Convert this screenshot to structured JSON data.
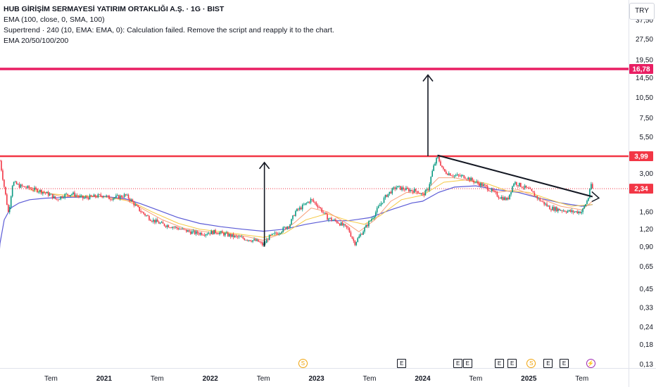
{
  "legend": {
    "title": "HUB GİRİŞİM SERMAYESİ YATIRIM ORTAKLIĞI A.Ş. · 1G · BIST",
    "line1": "EMA (100, close, 0, SMA, 100)",
    "line2": "Supertrend · 240 (10, EMA: EMA, 0): Calculation failed. Remove the script and reapply it to the chart.",
    "line3": "EMA 20/50/100/200"
  },
  "currency": "TRY",
  "chart_data": {
    "type": "line",
    "yscale": "log",
    "ylim": [
      0.125,
      48
    ],
    "y_ticks": [
      "37,50",
      "27,50",
      "19,50",
      "14,50",
      "10,50",
      "7,50",
      "5,50",
      "3,00",
      "1,60",
      "1,20",
      "0,90",
      "0,65",
      "0,45",
      "0,33",
      "0,24",
      "0,18",
      "0,13"
    ],
    "y_tick_values": [
      37.5,
      27.5,
      19.5,
      14.5,
      10.5,
      7.5,
      5.5,
      3.0,
      1.6,
      1.2,
      0.9,
      0.65,
      0.45,
      0.33,
      0.24,
      0.18,
      0.13
    ],
    "x_ticks": [
      {
        "label": "Tem",
        "t": 2020.5,
        "year": false
      },
      {
        "label": "2021",
        "t": 2021.0,
        "year": true
      },
      {
        "label": "Tem",
        "t": 2021.5,
        "year": false
      },
      {
        "label": "2022",
        "t": 2022.0,
        "year": true
      },
      {
        "label": "Tem",
        "t": 2022.5,
        "year": false
      },
      {
        "label": "2023",
        "t": 2023.0,
        "year": true
      },
      {
        "label": "Tem",
        "t": 2023.5,
        "year": false
      },
      {
        "label": "2024",
        "t": 2024.0,
        "year": true
      },
      {
        "label": "Tem",
        "t": 2024.5,
        "year": false
      },
      {
        "label": "2025",
        "t": 2025.0,
        "year": true
      },
      {
        "label": "Tem",
        "t": 2025.5,
        "year": false
      }
    ],
    "xlim": [
      2020.02,
      2025.8
    ],
    "price": [
      [
        2020.02,
        3.7
      ],
      [
        2020.06,
        2.4
      ],
      [
        2020.1,
        1.55
      ],
      [
        2020.14,
        2.6
      ],
      [
        2020.2,
        2.45
      ],
      [
        2020.3,
        2.35
      ],
      [
        2020.4,
        2.25
      ],
      [
        2020.5,
        2.1
      ],
      [
        2020.55,
        1.95
      ],
      [
        2020.62,
        2.1
      ],
      [
        2020.7,
        2.15
      ],
      [
        2020.8,
        2.0
      ],
      [
        2020.9,
        2.05
      ],
      [
        2021.0,
        2.1
      ],
      [
        2021.05,
        2.0
      ],
      [
        2021.15,
        2.05
      ],
      [
        2021.2,
        2.1
      ],
      [
        2021.25,
        1.95
      ],
      [
        2021.3,
        1.75
      ],
      [
        2021.35,
        1.6
      ],
      [
        2021.45,
        1.4
      ],
      [
        2021.55,
        1.3
      ],
      [
        2021.65,
        1.25
      ],
      [
        2021.75,
        1.18
      ],
      [
        2021.85,
        1.13
      ],
      [
        2021.95,
        1.12
      ],
      [
        2022.05,
        1.15
      ],
      [
        2022.15,
        1.1
      ],
      [
        2022.25,
        1.05
      ],
      [
        2022.35,
        1.02
      ],
      [
        2022.45,
        0.98
      ],
      [
        2022.5,
        0.92
      ],
      [
        2022.55,
        1.05
      ],
      [
        2022.65,
        1.15
      ],
      [
        2022.75,
        1.3
      ],
      [
        2022.8,
        1.6
      ],
      [
        2022.85,
        1.7
      ],
      [
        2022.95,
        1.95
      ],
      [
        2023.02,
        1.75
      ],
      [
        2023.1,
        1.45
      ],
      [
        2023.2,
        1.35
      ],
      [
        2023.3,
        1.2
      ],
      [
        2023.36,
        0.95
      ],
      [
        2023.45,
        1.2
      ],
      [
        2023.55,
        1.55
      ],
      [
        2023.6,
        1.8
      ],
      [
        2023.66,
        2.1
      ],
      [
        2023.75,
        2.4
      ],
      [
        2023.85,
        2.3
      ],
      [
        2023.95,
        2.25
      ],
      [
        2024.0,
        2.1
      ],
      [
        2024.05,
        2.3
      ],
      [
        2024.1,
        3.3
      ],
      [
        2024.14,
        3.95
      ],
      [
        2024.2,
        3.1
      ],
      [
        2024.3,
        2.9
      ],
      [
        2024.4,
        2.85
      ],
      [
        2024.5,
        2.6
      ],
      [
        2024.58,
        2.45
      ],
      [
        2024.65,
        2.25
      ],
      [
        2024.72,
        2.05
      ],
      [
        2024.8,
        1.95
      ],
      [
        2024.86,
        2.6
      ],
      [
        2024.93,
        2.45
      ],
      [
        2025.0,
        2.3
      ],
      [
        2025.1,
        1.95
      ],
      [
        2025.2,
        1.7
      ],
      [
        2025.3,
        1.65
      ],
      [
        2025.4,
        1.6
      ],
      [
        2025.5,
        1.6
      ],
      [
        2025.56,
        2.0
      ],
      [
        2025.58,
        2.5
      ],
      [
        2025.6,
        2.34
      ]
    ],
    "ema_long": [
      [
        2020.0,
        0.6
      ],
      [
        2020.02,
        0.95
      ],
      [
        2020.06,
        1.4
      ],
      [
        2020.12,
        1.7
      ],
      [
        2020.2,
        1.85
      ],
      [
        2020.3,
        1.95
      ],
      [
        2020.45,
        2.0
      ],
      [
        2020.6,
        2.02
      ],
      [
        2020.8,
        2.04
      ],
      [
        2021.0,
        2.06
      ],
      [
        2021.2,
        1.98
      ],
      [
        2021.35,
        1.82
      ],
      [
        2021.5,
        1.65
      ],
      [
        2021.7,
        1.45
      ],
      [
        2021.9,
        1.32
      ],
      [
        2022.1,
        1.25
      ],
      [
        2022.3,
        1.2
      ],
      [
        2022.5,
        1.16
      ],
      [
        2022.7,
        1.2
      ],
      [
        2022.9,
        1.3
      ],
      [
        2023.1,
        1.38
      ],
      [
        2023.3,
        1.38
      ],
      [
        2023.5,
        1.45
      ],
      [
        2023.7,
        1.65
      ],
      [
        2023.9,
        1.85
      ],
      [
        2024.0,
        1.9
      ],
      [
        2024.15,
        2.2
      ],
      [
        2024.3,
        2.4
      ],
      [
        2024.5,
        2.45
      ],
      [
        2024.7,
        2.3
      ],
      [
        2024.9,
        2.2
      ],
      [
        2025.1,
        2.0
      ],
      [
        2025.3,
        1.85
      ],
      [
        2025.5,
        1.75
      ],
      [
        2025.6,
        1.8
      ]
    ],
    "ema_short": [
      [
        2020.3,
        2.4
      ],
      [
        2020.45,
        2.2
      ],
      [
        2020.6,
        2.05
      ],
      [
        2020.8,
        2.05
      ],
      [
        2021.0,
        2.05
      ],
      [
        2021.2,
        1.95
      ],
      [
        2021.35,
        1.7
      ],
      [
        2021.55,
        1.4
      ],
      [
        2021.75,
        1.22
      ],
      [
        2021.95,
        1.15
      ],
      [
        2022.15,
        1.12
      ],
      [
        2022.35,
        1.06
      ],
      [
        2022.5,
        1.0
      ],
      [
        2022.65,
        1.1
      ],
      [
        2022.8,
        1.35
      ],
      [
        2022.95,
        1.7
      ],
      [
        2023.1,
        1.6
      ],
      [
        2023.3,
        1.3
      ],
      [
        2023.4,
        1.15
      ],
      [
        2023.55,
        1.4
      ],
      [
        2023.7,
        1.9
      ],
      [
        2023.85,
        2.2
      ],
      [
        2024.0,
        2.15
      ],
      [
        2024.15,
        2.8
      ],
      [
        2024.3,
        2.8
      ],
      [
        2024.5,
        2.6
      ],
      [
        2024.7,
        2.2
      ],
      [
        2024.9,
        2.3
      ],
      [
        2025.1,
        2.0
      ],
      [
        2025.3,
        1.75
      ],
      [
        2025.5,
        1.65
      ],
      [
        2025.6,
        1.9
      ]
    ],
    "ema_mid": [
      [
        2020.3,
        2.3
      ],
      [
        2020.5,
        2.15
      ],
      [
        2020.7,
        2.08
      ],
      [
        2021.0,
        2.05
      ],
      [
        2021.25,
        1.9
      ],
      [
        2021.45,
        1.6
      ],
      [
        2021.7,
        1.32
      ],
      [
        2021.9,
        1.2
      ],
      [
        2022.1,
        1.15
      ],
      [
        2022.3,
        1.1
      ],
      [
        2022.5,
        1.05
      ],
      [
        2022.7,
        1.12
      ],
      [
        2022.9,
        1.4
      ],
      [
        2023.1,
        1.55
      ],
      [
        2023.3,
        1.38
      ],
      [
        2023.45,
        1.3
      ],
      [
        2023.6,
        1.5
      ],
      [
        2023.8,
        1.95
      ],
      [
        2024.0,
        2.1
      ],
      [
        2024.2,
        2.6
      ],
      [
        2024.4,
        2.7
      ],
      [
        2024.6,
        2.55
      ],
      [
        2024.8,
        2.25
      ],
      [
        2025.0,
        2.2
      ],
      [
        2025.2,
        1.95
      ],
      [
        2025.4,
        1.75
      ],
      [
        2025.6,
        1.8
      ]
    ],
    "level_lines": [
      {
        "value": 16.78,
        "label": "16,78",
        "color": "#e91e63",
        "width": 3.5
      },
      {
        "value": 3.99,
        "label": "3,99",
        "color": "#f23645",
        "width": 2.5
      }
    ],
    "current_price": {
      "value": 2.34,
      "label": "2,34",
      "color": "#f23645"
    },
    "arrows": [
      {
        "from": [
          2022.51,
          0.9
        ],
        "to": [
          2022.51,
          3.6
        ]
      },
      {
        "from": [
          2024.05,
          3.99
        ],
        "to": [
          2024.05,
          15.2
        ]
      }
    ],
    "trendline": {
      "from": [
        2024.14,
        4.05
      ],
      "to": [
        2025.6,
        2.05
      ]
    },
    "trend_arrow_tip": [
      2025.66,
      1.98
    ],
    "events": [
      {
        "t": 2022.87,
        "k": "d",
        "label": "S"
      },
      {
        "t": 2023.8,
        "k": "e",
        "label": "E"
      },
      {
        "t": 2024.33,
        "k": "e",
        "label": "E"
      },
      {
        "t": 2024.42,
        "k": "e",
        "label": "E"
      },
      {
        "t": 2024.72,
        "k": "e",
        "label": "E"
      },
      {
        "t": 2024.84,
        "k": "e",
        "label": "E"
      },
      {
        "t": 2025.02,
        "k": "d",
        "label": "S"
      },
      {
        "t": 2025.18,
        "k": "e",
        "label": "E"
      },
      {
        "t": 2025.33,
        "k": "e",
        "label": "E"
      },
      {
        "t": 2025.58,
        "k": "s",
        "label": "⚡"
      }
    ]
  }
}
